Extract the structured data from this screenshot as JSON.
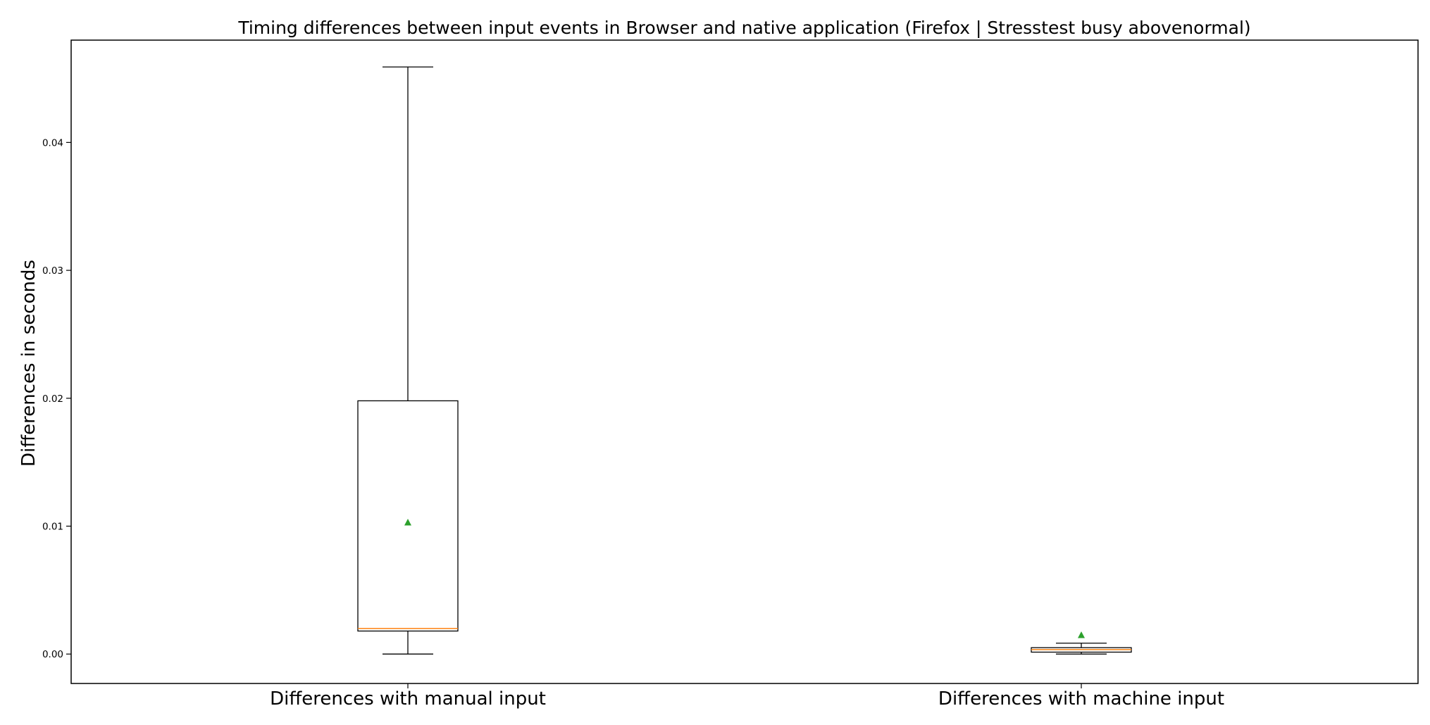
{
  "chart_data": {
    "type": "box",
    "title": "Timing differences between input events in Browser and native application (Firefox | Stresstest busy abovenormal)",
    "xlabel": "",
    "ylabel": "Differences in seconds",
    "categories": [
      "Differences with manual input",
      "Differences with machine input"
    ],
    "ylim": [
      -0.0023,
      0.048
    ],
    "yticks": [
      0.0,
      0.01,
      0.02,
      0.03,
      0.04
    ],
    "ytick_labels": [
      "0.00",
      "0.01",
      "0.02",
      "0.03",
      "0.04"
    ],
    "grid": false,
    "boxes": [
      {
        "whislo": 0.0,
        "q1": 0.0018,
        "median": 0.002,
        "q3": 0.0198,
        "whishi": 0.0459,
        "mean": 0.0103
      },
      {
        "whislo": 0.0,
        "q1": 0.00015,
        "median": 0.00035,
        "q3": 0.0005,
        "whishi": 0.00085,
        "mean": 0.0015
      }
    ],
    "colors": {
      "box": "#000000",
      "median": "#ff7f0e",
      "mean": "#2ca02c"
    }
  }
}
